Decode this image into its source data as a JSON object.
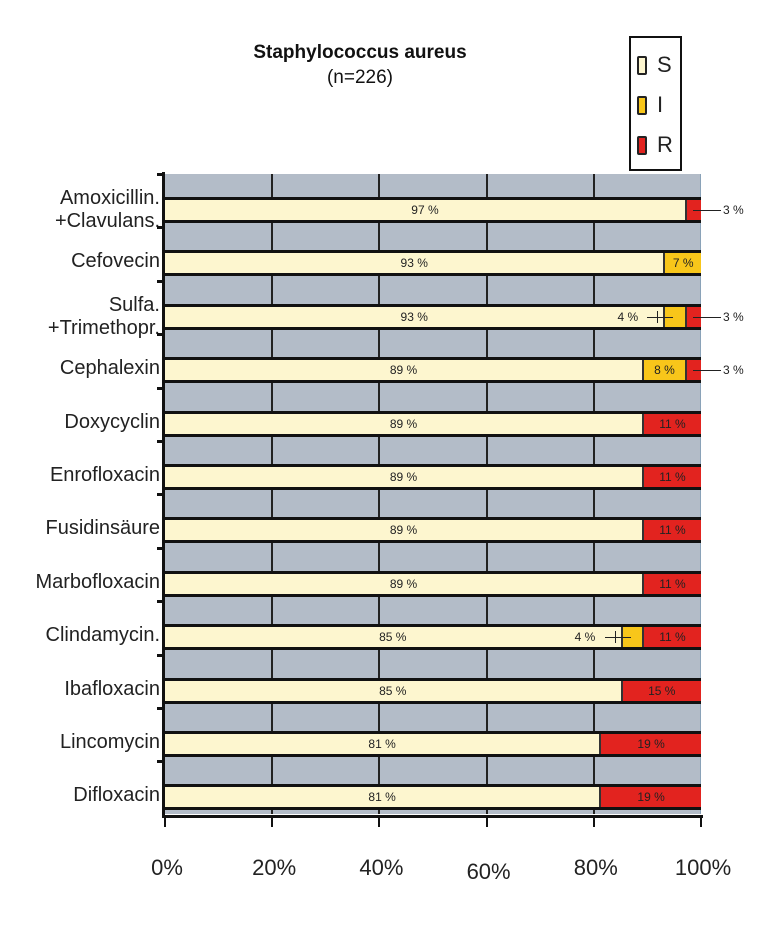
{
  "chart_data": {
    "type": "bar",
    "orientation": "horizontal",
    "stacked": true,
    "title": "Staphylococcus aureus",
    "subtitle": "(n=226)",
    "xlabel": "",
    "ylabel": "",
    "xlim": [
      0,
      100
    ],
    "x_ticks": [
      "0%",
      "20%",
      "40%",
      "60%",
      "80%",
      "100%"
    ],
    "grid": true,
    "legend_position": "top-right",
    "categories": [
      "Amoxicillin. +Clavulans.",
      "Cefovecin",
      "Sulfa. +Trimethopr.",
      "Cephalexin",
      "Doxycyclin",
      "Enrofloxacin",
      "Fusidinsäure",
      "Marbofloxacin",
      "Clindamycin.",
      "Ibafloxacin",
      "Lincomycin",
      "Difloxacin"
    ],
    "series": [
      {
        "name": "S",
        "color": "#fdf6cf",
        "values": [
          97,
          93,
          93,
          89,
          89,
          89,
          89,
          89,
          85,
          85,
          81,
          81
        ]
      },
      {
        "name": "I",
        "color": "#f8c61a",
        "values": [
          0,
          7,
          4,
          8,
          0,
          0,
          0,
          0,
          4,
          0,
          0,
          0
        ]
      },
      {
        "name": "R",
        "color": "#e2231f",
        "values": [
          3,
          0,
          3,
          3,
          11,
          11,
          11,
          11,
          11,
          15,
          19,
          19
        ]
      }
    ]
  },
  "chart": {
    "title": "Staphylococcus aureus",
    "subtitle": "(n=226)",
    "legend": [
      {
        "label": "S",
        "color": "#fdf6cf"
      },
      {
        "label": "I",
        "color": "#f8c61a"
      },
      {
        "label": "R",
        "color": "#e2231f"
      }
    ],
    "rows": [
      {
        "label1": "Amoxicillin.",
        "label2": "+Clavulans.",
        "s_text": "97 %",
        "i_text": "",
        "r_text": "",
        "i_out": "",
        "r_out": "3 %"
      },
      {
        "label1": "Cefovecin",
        "label2": "",
        "s_text": "93 %",
        "i_text": "7 %",
        "r_text": "",
        "i_out": "",
        "r_out": ""
      },
      {
        "label1": "Sulfa.",
        "label2": "+Trimethopr.",
        "s_text": "93 %",
        "i_text": "",
        "r_text": "",
        "i_out": "4 %",
        "r_out": "3 %"
      },
      {
        "label1": "Cephalexin",
        "label2": "",
        "s_text": "89 %",
        "i_text": "8 %",
        "r_text": "",
        "i_out": "",
        "r_out": "3 %"
      },
      {
        "label1": "Doxycyclin",
        "label2": "",
        "s_text": "89 %",
        "i_text": "",
        "r_text": "11 %",
        "i_out": "",
        "r_out": ""
      },
      {
        "label1": "Enrofloxacin",
        "label2": "",
        "s_text": "89 %",
        "i_text": "",
        "r_text": "11 %",
        "i_out": "",
        "r_out": ""
      },
      {
        "label1": "Fusidinsäure",
        "label2": "",
        "s_text": "89 %",
        "i_text": "",
        "r_text": "11 %",
        "i_out": "",
        "r_out": ""
      },
      {
        "label1": "Marbofloxacin",
        "label2": "",
        "s_text": "89 %",
        "i_text": "",
        "r_text": "11 %",
        "i_out": "",
        "r_out": ""
      },
      {
        "label1": "Clindamycin.",
        "label2": "",
        "s_text": "85 %",
        "i_text": "",
        "r_text": "11 %",
        "i_out": "4 %",
        "r_out": ""
      },
      {
        "label1": "Ibafloxacin",
        "label2": "",
        "s_text": "85 %",
        "i_text": "",
        "r_text": "15 %",
        "i_out": "",
        "r_out": ""
      },
      {
        "label1": "Lincomycin",
        "label2": "",
        "s_text": "81 %",
        "i_text": "",
        "r_text": "19 %",
        "i_out": "",
        "r_out": ""
      },
      {
        "label1": "Difloxacin",
        "label2": "",
        "s_text": "81 %",
        "i_text": "",
        "r_text": "19 %",
        "i_out": "",
        "r_out": ""
      }
    ],
    "x_ticks": [
      "0%",
      "20%",
      "40%",
      "60%",
      "80%",
      "100%"
    ]
  }
}
